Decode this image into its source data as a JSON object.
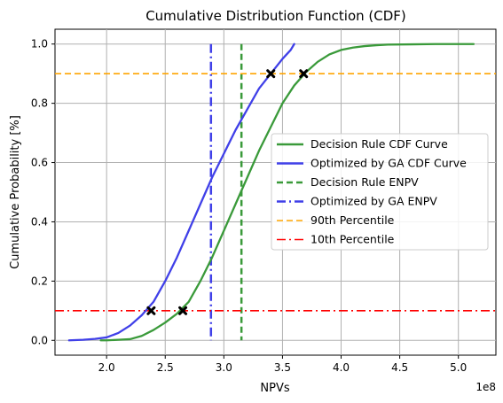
{
  "chart_data": {
    "type": "line",
    "title": "Cumulative Distribution Function (CDF)",
    "xlabel": "NPVs",
    "ylabel": "Cumulative Probability [%]",
    "x_scale_label": "1e8",
    "xlim": [
      0.5,
      0.55
    ],
    "ylim": [
      -0.05,
      1.05
    ],
    "x_ticks": [
      2.0,
      2.5,
      3.0,
      3.5,
      4.0,
      4.5,
      5.0
    ],
    "x_tick_labels": [
      "2.0",
      "2.5",
      "3.0",
      "3.5",
      "4.0",
      "4.5",
      "5.0"
    ],
    "y_ticks": [
      0.0,
      0.2,
      0.4,
      0.6,
      0.8,
      1.0
    ],
    "y_tick_labels": [
      "0.0",
      "0.2",
      "0.4",
      "0.6",
      "0.8",
      "1.0"
    ],
    "grid": true,
    "legend_placement": "center-right",
    "xlim_note": "",
    "series": [
      {
        "name": "Decision Rule CDF Curve",
        "style": "solid",
        "color": "#3a9a3a",
        "x": [
          1.95,
          2.0,
          2.1,
          2.2,
          2.3,
          2.4,
          2.5,
          2.6,
          2.7,
          2.8,
          2.9,
          3.0,
          3.1,
          3.2,
          3.3,
          3.4,
          3.5,
          3.6,
          3.7,
          3.8,
          3.9,
          4.0,
          4.1,
          4.2,
          4.3,
          4.4,
          4.6,
          4.8,
          5.0,
          5.13
        ],
        "y": [
          0.0,
          0.0,
          0.002,
          0.004,
          0.015,
          0.035,
          0.06,
          0.09,
          0.13,
          0.2,
          0.28,
          0.37,
          0.46,
          0.55,
          0.64,
          0.72,
          0.8,
          0.86,
          0.905,
          0.94,
          0.965,
          0.98,
          0.988,
          0.993,
          0.996,
          0.998,
          0.999,
          1.0,
          1.0,
          1.0
        ]
      },
      {
        "name": "Optimized by GA CDF Curve",
        "style": "solid",
        "color": "#4040e8",
        "x": [
          1.68,
          1.8,
          1.9,
          2.0,
          2.1,
          2.2,
          2.3,
          2.4,
          2.5,
          2.6,
          2.7,
          2.8,
          2.9,
          3.0,
          3.1,
          3.2,
          3.3,
          3.4,
          3.5,
          3.57,
          3.6
        ],
        "y": [
          0.0,
          0.002,
          0.005,
          0.01,
          0.025,
          0.05,
          0.085,
          0.13,
          0.2,
          0.28,
          0.37,
          0.46,
          0.55,
          0.63,
          0.71,
          0.78,
          0.85,
          0.9,
          0.95,
          0.98,
          1.0
        ]
      }
    ],
    "vertical_lines": [
      {
        "name": "Decision Rule ENPV",
        "x": 3.15,
        "color": "#3a9a3a",
        "style": "dashed"
      },
      {
        "name": "Optimized by GA ENPV",
        "x": 2.89,
        "color": "#4040e8",
        "style": "dashdot"
      }
    ],
    "horizontal_lines": [
      {
        "name": "90th Percentile",
        "y": 0.9,
        "color": "#ffa500",
        "style": "dashed"
      },
      {
        "name": "10th Percentile",
        "y": 0.1,
        "color": "#ff0000",
        "style": "dashdot"
      }
    ],
    "markers": [
      {
        "x": 2.38,
        "y": 0.1
      },
      {
        "x": 2.65,
        "y": 0.1
      },
      {
        "x": 3.4,
        "y": 0.9
      },
      {
        "x": 3.68,
        "y": 0.9
      }
    ]
  }
}
